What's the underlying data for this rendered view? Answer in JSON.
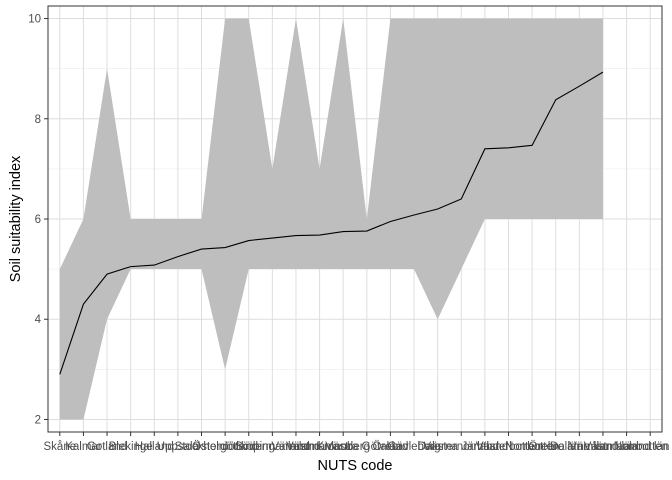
{
  "chart_data": {
    "type": "line",
    "title": "",
    "xlabel": "NUTS code",
    "ylabel": "Soil suitability index",
    "ylim": [
      1.75,
      10.25
    ],
    "yticks": [
      2,
      4,
      6,
      8,
      10
    ],
    "grid": true,
    "legend": "none",
    "categories": [
      "Skåne",
      "Kalmar",
      "Gotland",
      "Blekinge",
      "Halland",
      "Uppsala",
      "Stockholm",
      "Östergötland",
      "Jönköping",
      "Södermanland",
      "Värmland",
      "Västmanland",
      "Kronoberg",
      "Västra Götaland",
      "Örebro",
      "Gävleborg",
      "Dalarna",
      "Västernorrland",
      "Jämtland",
      "Västerbotten",
      "Norrbotten",
      "Örebro län",
      "Dalarna län",
      "Värmland län",
      "Västmanland län",
      "Norrbotten län"
    ],
    "series": [
      {
        "role": "line",
        "values": [
          2.9,
          4.3,
          4.9,
          5.05,
          5.08,
          5.25,
          5.4,
          5.43,
          5.57,
          5.62,
          5.67,
          5.68,
          5.75,
          5.76,
          5.95,
          6.08,
          6.2,
          6.4,
          7.4,
          7.42,
          7.47,
          8.38,
          8.65,
          8.93,
          null,
          null
        ]
      },
      {
        "role": "ribbon-lower",
        "values": [
          2,
          2,
          4,
          5,
          5,
          5,
          5,
          3,
          5,
          5,
          5,
          5,
          5,
          5,
          5,
          5,
          4,
          5,
          6,
          6,
          6,
          6,
          6,
          6,
          null,
          null
        ]
      },
      {
        "role": "ribbon-upper",
        "values": [
          5,
          6,
          9,
          6,
          6,
          6,
          6,
          10,
          10,
          7,
          10,
          7,
          10,
          6,
          10,
          10,
          10,
          10,
          10,
          10,
          10,
          10,
          10,
          10,
          null,
          null
        ]
      }
    ],
    "colors": {
      "ribbon": "#bebebe",
      "line": "#000000",
      "grid": "#dedede",
      "panel_border": "#333333"
    }
  }
}
